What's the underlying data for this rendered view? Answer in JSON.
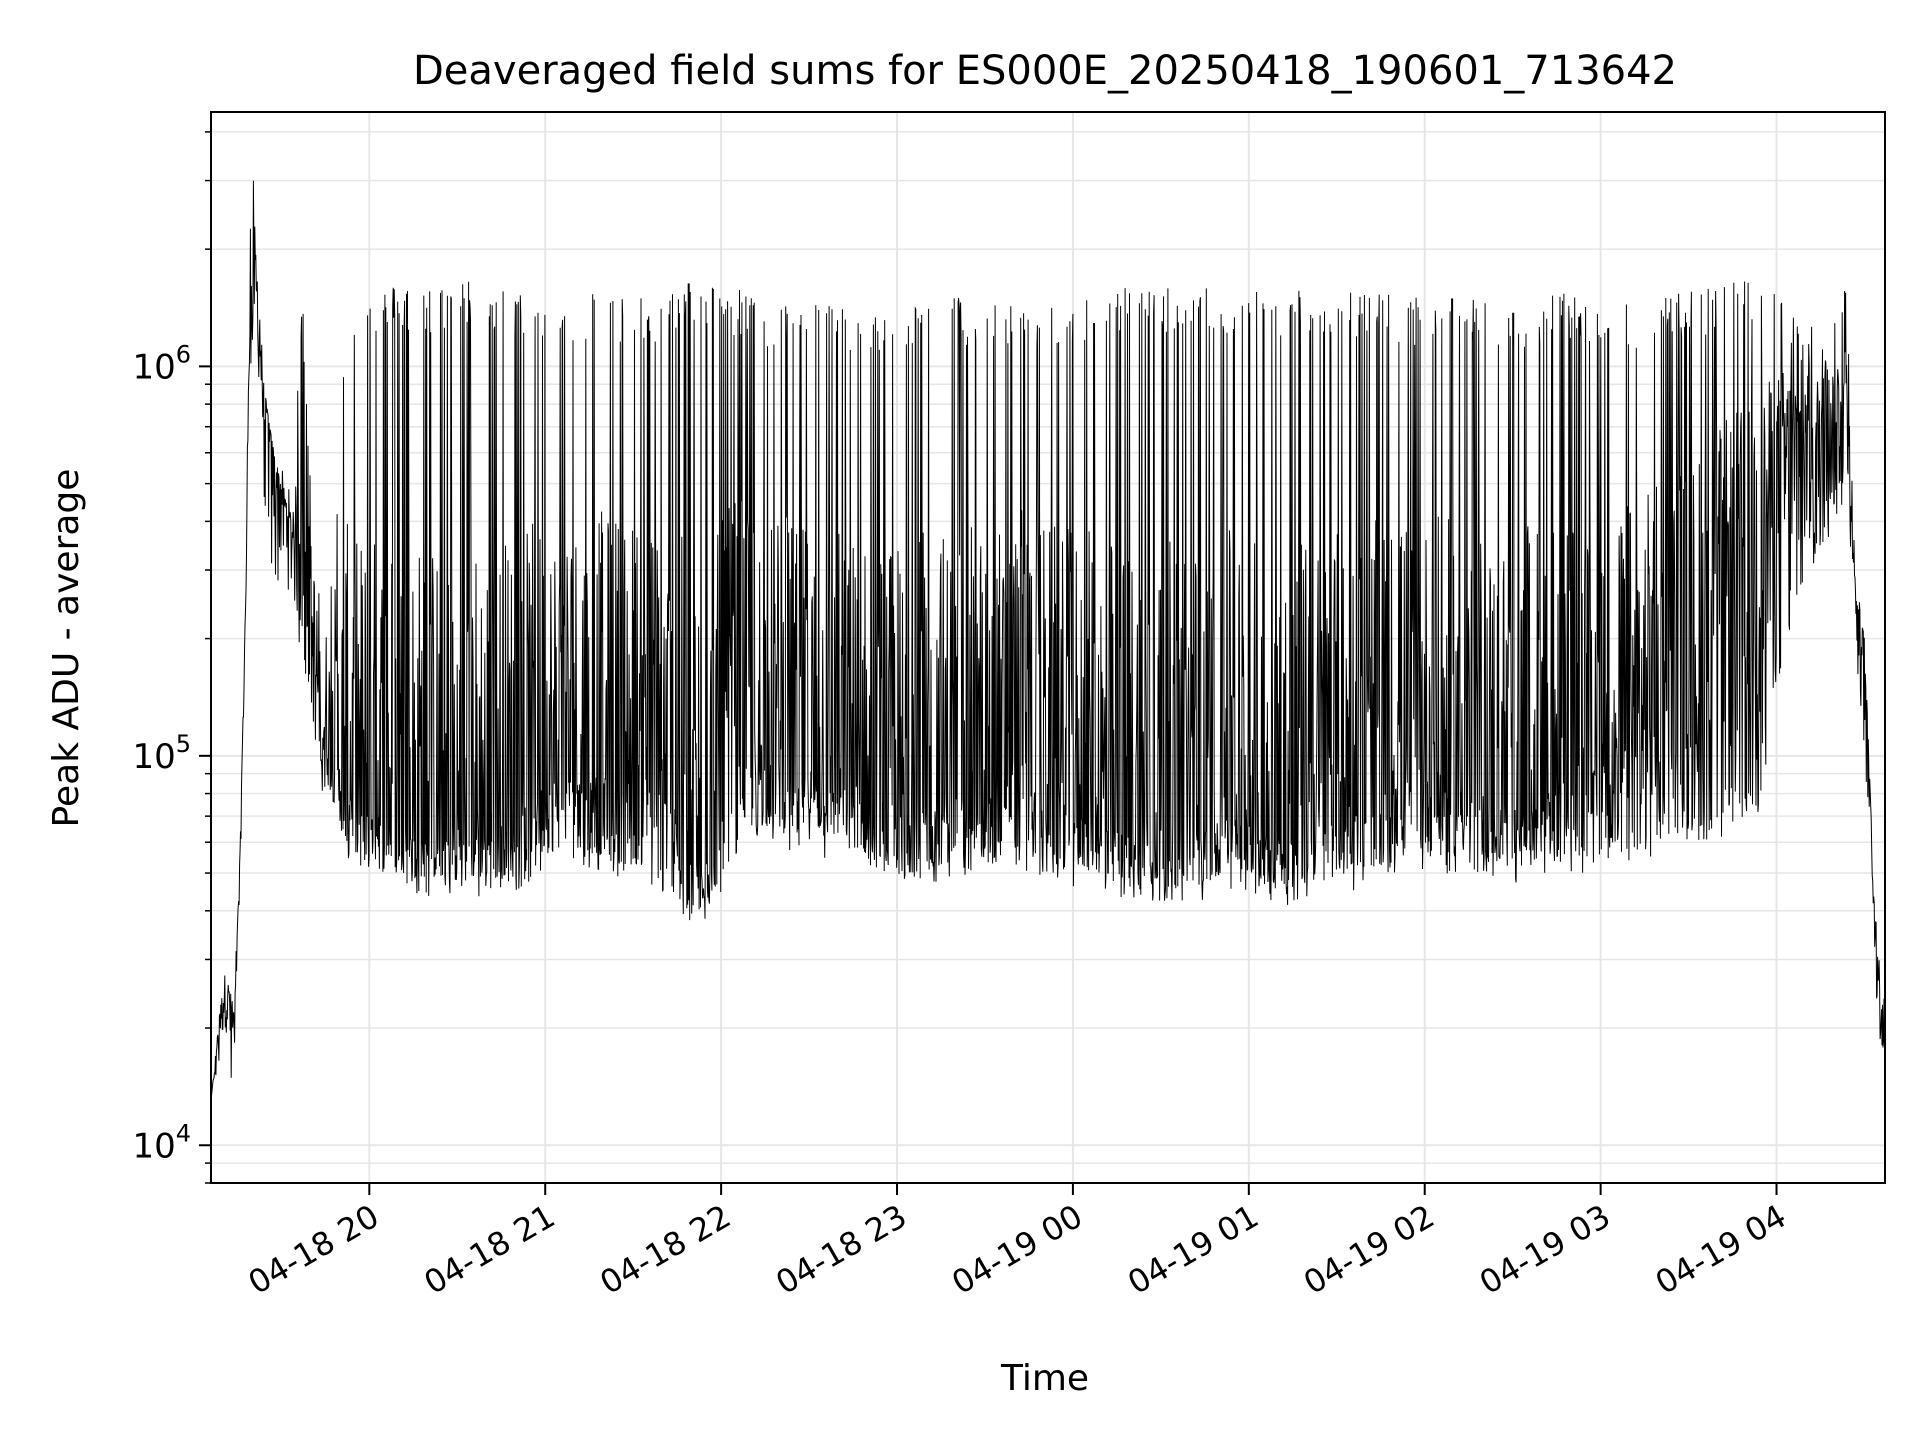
{
  "chart_data": {
    "type": "line",
    "title": "Deaveraged field sums for ES000E_20250418_190601_713642",
    "xlabel": "Time",
    "ylabel": "Peak ADU - average",
    "y_scale": "log",
    "ylim": [
      8000,
      4500000
    ],
    "xlim": [
      "2025-04-18 19:06",
      "2025-04-19 04:37"
    ],
    "x_ticks": [
      {
        "value": "2025-04-18 20:00",
        "label": "04-18 20"
      },
      {
        "value": "2025-04-18 21:00",
        "label": "04-18 21"
      },
      {
        "value": "2025-04-18 22:00",
        "label": "04-18 22"
      },
      {
        "value": "2025-04-18 23:00",
        "label": "04-18 23"
      },
      {
        "value": "2025-04-19 00:00",
        "label": "04-19 00"
      },
      {
        "value": "2025-04-19 01:00",
        "label": "04-19 01"
      },
      {
        "value": "2025-04-19 02:00",
        "label": "04-19 02"
      },
      {
        "value": "2025-04-19 03:00",
        "label": "04-19 03"
      },
      {
        "value": "2025-04-19 04:00",
        "label": "04-19 04"
      }
    ],
    "y_ticks": [
      {
        "value": 10000,
        "base": "10",
        "exp": "4"
      },
      {
        "value": 100000,
        "base": "10",
        "exp": "5"
      },
      {
        "value": 1000000,
        "base": "10",
        "exp": "6"
      }
    ],
    "grid": true,
    "line_color": "#000000",
    "grid_color": "#e6e6e6",
    "series": [
      {
        "x": [
          "2025-04-18 19:06",
          "2025-04-18 19:09",
          "2025-04-18 19:11",
          "2025-04-18 19:13",
          "2025-04-18 19:14",
          "2025-04-18 19:16",
          "2025-04-18 19:18",
          "2025-04-18 19:19",
          "2025-04-18 19:21",
          "2025-04-18 19:22",
          "2025-04-18 19:24",
          "2025-04-18 19:26",
          "2025-04-18 19:28",
          "2025-04-18 19:30",
          "2025-04-18 19:32",
          "2025-04-18 19:34",
          "2025-04-18 19:37",
          "2025-04-18 19:40",
          "2025-04-18 19:44",
          "2025-04-18 19:48",
          "2025-04-18 19:52",
          "2025-04-18 19:57",
          "2025-04-18 20:04",
          "2025-04-18 20:12",
          "2025-04-18 20:20",
          "2025-04-18 20:30",
          "2025-04-18 20:40",
          "2025-04-18 20:50",
          "2025-04-18 21:00",
          "2025-04-18 21:10",
          "2025-04-18 21:20",
          "2025-04-18 21:30",
          "2025-04-18 21:40",
          "2025-04-18 21:48",
          "2025-04-18 21:56",
          "2025-04-18 22:05",
          "2025-04-18 22:15",
          "2025-04-18 22:25",
          "2025-04-18 22:35",
          "2025-04-18 22:45",
          "2025-04-18 22:55",
          "2025-04-18 23:05",
          "2025-04-18 23:15",
          "2025-04-18 23:25",
          "2025-04-18 23:35",
          "2025-04-18 23:45",
          "2025-04-18 23:55",
          "2025-04-19 00:05",
          "2025-04-19 00:15",
          "2025-04-19 00:25",
          "2025-04-19 00:35",
          "2025-04-19 00:45",
          "2025-04-19 00:55",
          "2025-04-19 01:05",
          "2025-04-19 01:15",
          "2025-04-19 01:25",
          "2025-04-19 01:35",
          "2025-04-19 01:45",
          "2025-04-19 01:55",
          "2025-04-19 02:05",
          "2025-04-19 02:15",
          "2025-04-19 02:25",
          "2025-04-19 02:35",
          "2025-04-19 02:45",
          "2025-04-19 02:55",
          "2025-04-19 03:05",
          "2025-04-19 03:15",
          "2025-04-19 03:25",
          "2025-04-19 03:35",
          "2025-04-19 03:45",
          "2025-04-19 03:55",
          "2025-04-19 04:02",
          "2025-04-19 04:10",
          "2025-04-19 04:18",
          "2025-04-19 04:24",
          "2025-04-19 04:27",
          "2025-04-19 04:30",
          "2025-04-19 04:33",
          "2025-04-19 04:35",
          "2025-04-19 04:37"
        ],
        "base": [
          13000,
          22000,
          26000,
          22000,
          20000,
          60000,
          300000,
          1200000,
          1600000,
          1500000,
          900000,
          700000,
          550000,
          480000,
          420000,
          370000,
          300000,
          200000,
          130000,
          100000,
          85000,
          75000,
          70000,
          65000,
          62000,
          60000,
          65000,
          70000,
          85000,
          95000,
          90000,
          100000,
          80000,
          55000,
          50000,
          110000,
          100000,
          90000,
          85000,
          80000,
          70000,
          70000,
          75000,
          80000,
          90000,
          100000,
          80000,
          70000,
          65000,
          62000,
          60000,
          65000,
          70000,
          65000,
          60000,
          65000,
          70000,
          80000,
          90000,
          85000,
          80000,
          75000,
          75000,
          80000,
          90000,
          100000,
          120000,
          150000,
          200000,
          300000,
          400000,
          600000,
          650000,
          750000,
          800000,
          250000,
          200000,
          50000,
          25000,
          22000
        ],
        "spike": [
          13000,
          22000,
          31000,
          26000,
          25000,
          60000,
          300000,
          2800000,
          3200000,
          2100000,
          900000,
          700000,
          600000,
          550000,
          500000,
          450000,
          1700000,
          600000,
          400000,
          300000,
          1400000,
          1500000,
          1600000,
          1650000,
          1600000,
          1700000,
          1650000,
          1550000,
          1500000,
          1550000,
          1600000,
          1500000,
          1500000,
          1700000,
          1650000,
          1600000,
          1500000,
          1450000,
          1500000,
          1400000,
          1350000,
          1500000,
          1550000,
          1500000,
          1450000,
          1500000,
          1400000,
          1550000,
          1600000,
          1600000,
          1650000,
          1600000,
          1550000,
          1600000,
          1600000,
          1600000,
          1600000,
          1550000,
          1500000,
          1500000,
          1500000,
          1450000,
          1500000,
          1550000,
          1500000,
          1450000,
          1500000,
          1550000,
          1600000,
          1650000,
          1700000,
          1500000,
          1300000,
          1200000,
          1900000,
          300000,
          200000,
          50000,
          37000,
          30000
        ],
        "low": [
          13000,
          18000,
          20000,
          15000,
          18000,
          50000,
          250000,
          1000000,
          1400000,
          1100000,
          450000,
          350000,
          320000,
          300000,
          270000,
          250000,
          200000,
          130000,
          90000,
          75000,
          60000,
          55000,
          50000,
          50000,
          48000,
          46000,
          48000,
          50000,
          56000,
          58000,
          55000,
          52000,
          48000,
          40000,
          42000,
          60000,
          65000,
          62000,
          60000,
          58000,
          50000,
          50000,
          52000,
          55000,
          58000,
          55000,
          52000,
          50000,
          48000,
          46000,
          45000,
          47000,
          50000,
          48000,
          45000,
          48000,
          50000,
          52000,
          55000,
          55000,
          55000,
          53000,
          52000,
          53000,
          55000,
          58000,
          60000,
          62000,
          65000,
          70000,
          80000,
          200000,
          300000,
          400000,
          500000,
          200000,
          100000,
          40000,
          18000,
          20000
        ]
      }
    ]
  }
}
